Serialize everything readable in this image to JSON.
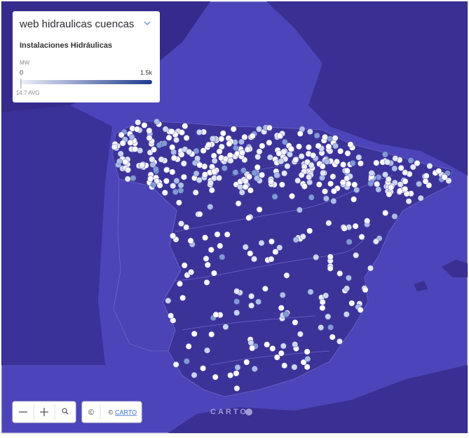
{
  "legend": {
    "title": "web hidraulicas cuencas",
    "subtitle": "Instalaciones Hidráulicas",
    "unit": "MW",
    "min": 0,
    "max": {
      "value": 1500,
      "label": "1.5k"
    },
    "avg": {
      "value": 14.7,
      "label": "14.7 AVG"
    }
  },
  "controls": {
    "info": "©"
  },
  "attribution": {
    "prefix": "©",
    "link": "CARTO"
  },
  "watermark": "CARTO"
}
